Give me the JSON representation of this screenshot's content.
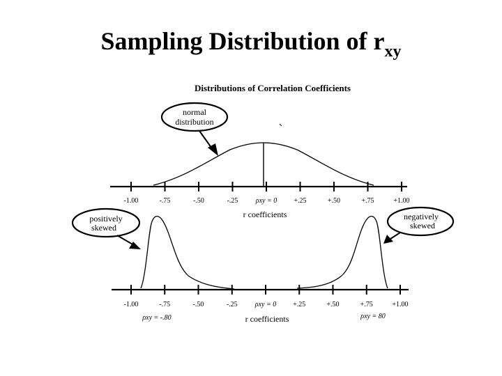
{
  "slide": {
    "title_main": "Sampling Distribution of r",
    "title_sub": "xy"
  },
  "figure": {
    "heading": "Distributions of Correlation Coefficients",
    "callouts": {
      "normal": [
        "normal",
        "distribution"
      ],
      "positive": [
        "positively",
        "skewed"
      ],
      "negative": [
        "negatively",
        "skewed"
      ]
    },
    "top_axis": {
      "ticks": [
        "-1.00",
        "-.75",
        "-.50",
        "-.25",
        "ρxy = 0",
        "+.25",
        "+.50",
        "+.75",
        "+1.00"
      ],
      "label": "r coefficients"
    },
    "bottom_axis": {
      "ticks": [
        "-1.00",
        "-.75",
        "-.50",
        "-.25",
        "ρxy = 0",
        "+.25",
        "+.50",
        "+.75",
        "+1.00"
      ],
      "label": "r coefficients"
    },
    "rho_markers": {
      "left": "ρxy = -.80",
      "right": "ρxy = 80"
    }
  },
  "chart_data": {
    "type": "area",
    "title": "Distributions of Correlation Coefficients",
    "xlabel": "r coefficients",
    "xlim": [
      -1.0,
      1.0
    ],
    "xticks": [
      -1.0,
      -0.75,
      -0.5,
      -0.25,
      0,
      0.25,
      0.5,
      0.75,
      1.0
    ],
    "panels": [
      {
        "label": "normal distribution",
        "peak_at": 0
      },
      {
        "label": "positively skewed",
        "peak_at": -0.8
      },
      {
        "label": "negatively skewed",
        "peak_at": 0.8
      }
    ]
  }
}
